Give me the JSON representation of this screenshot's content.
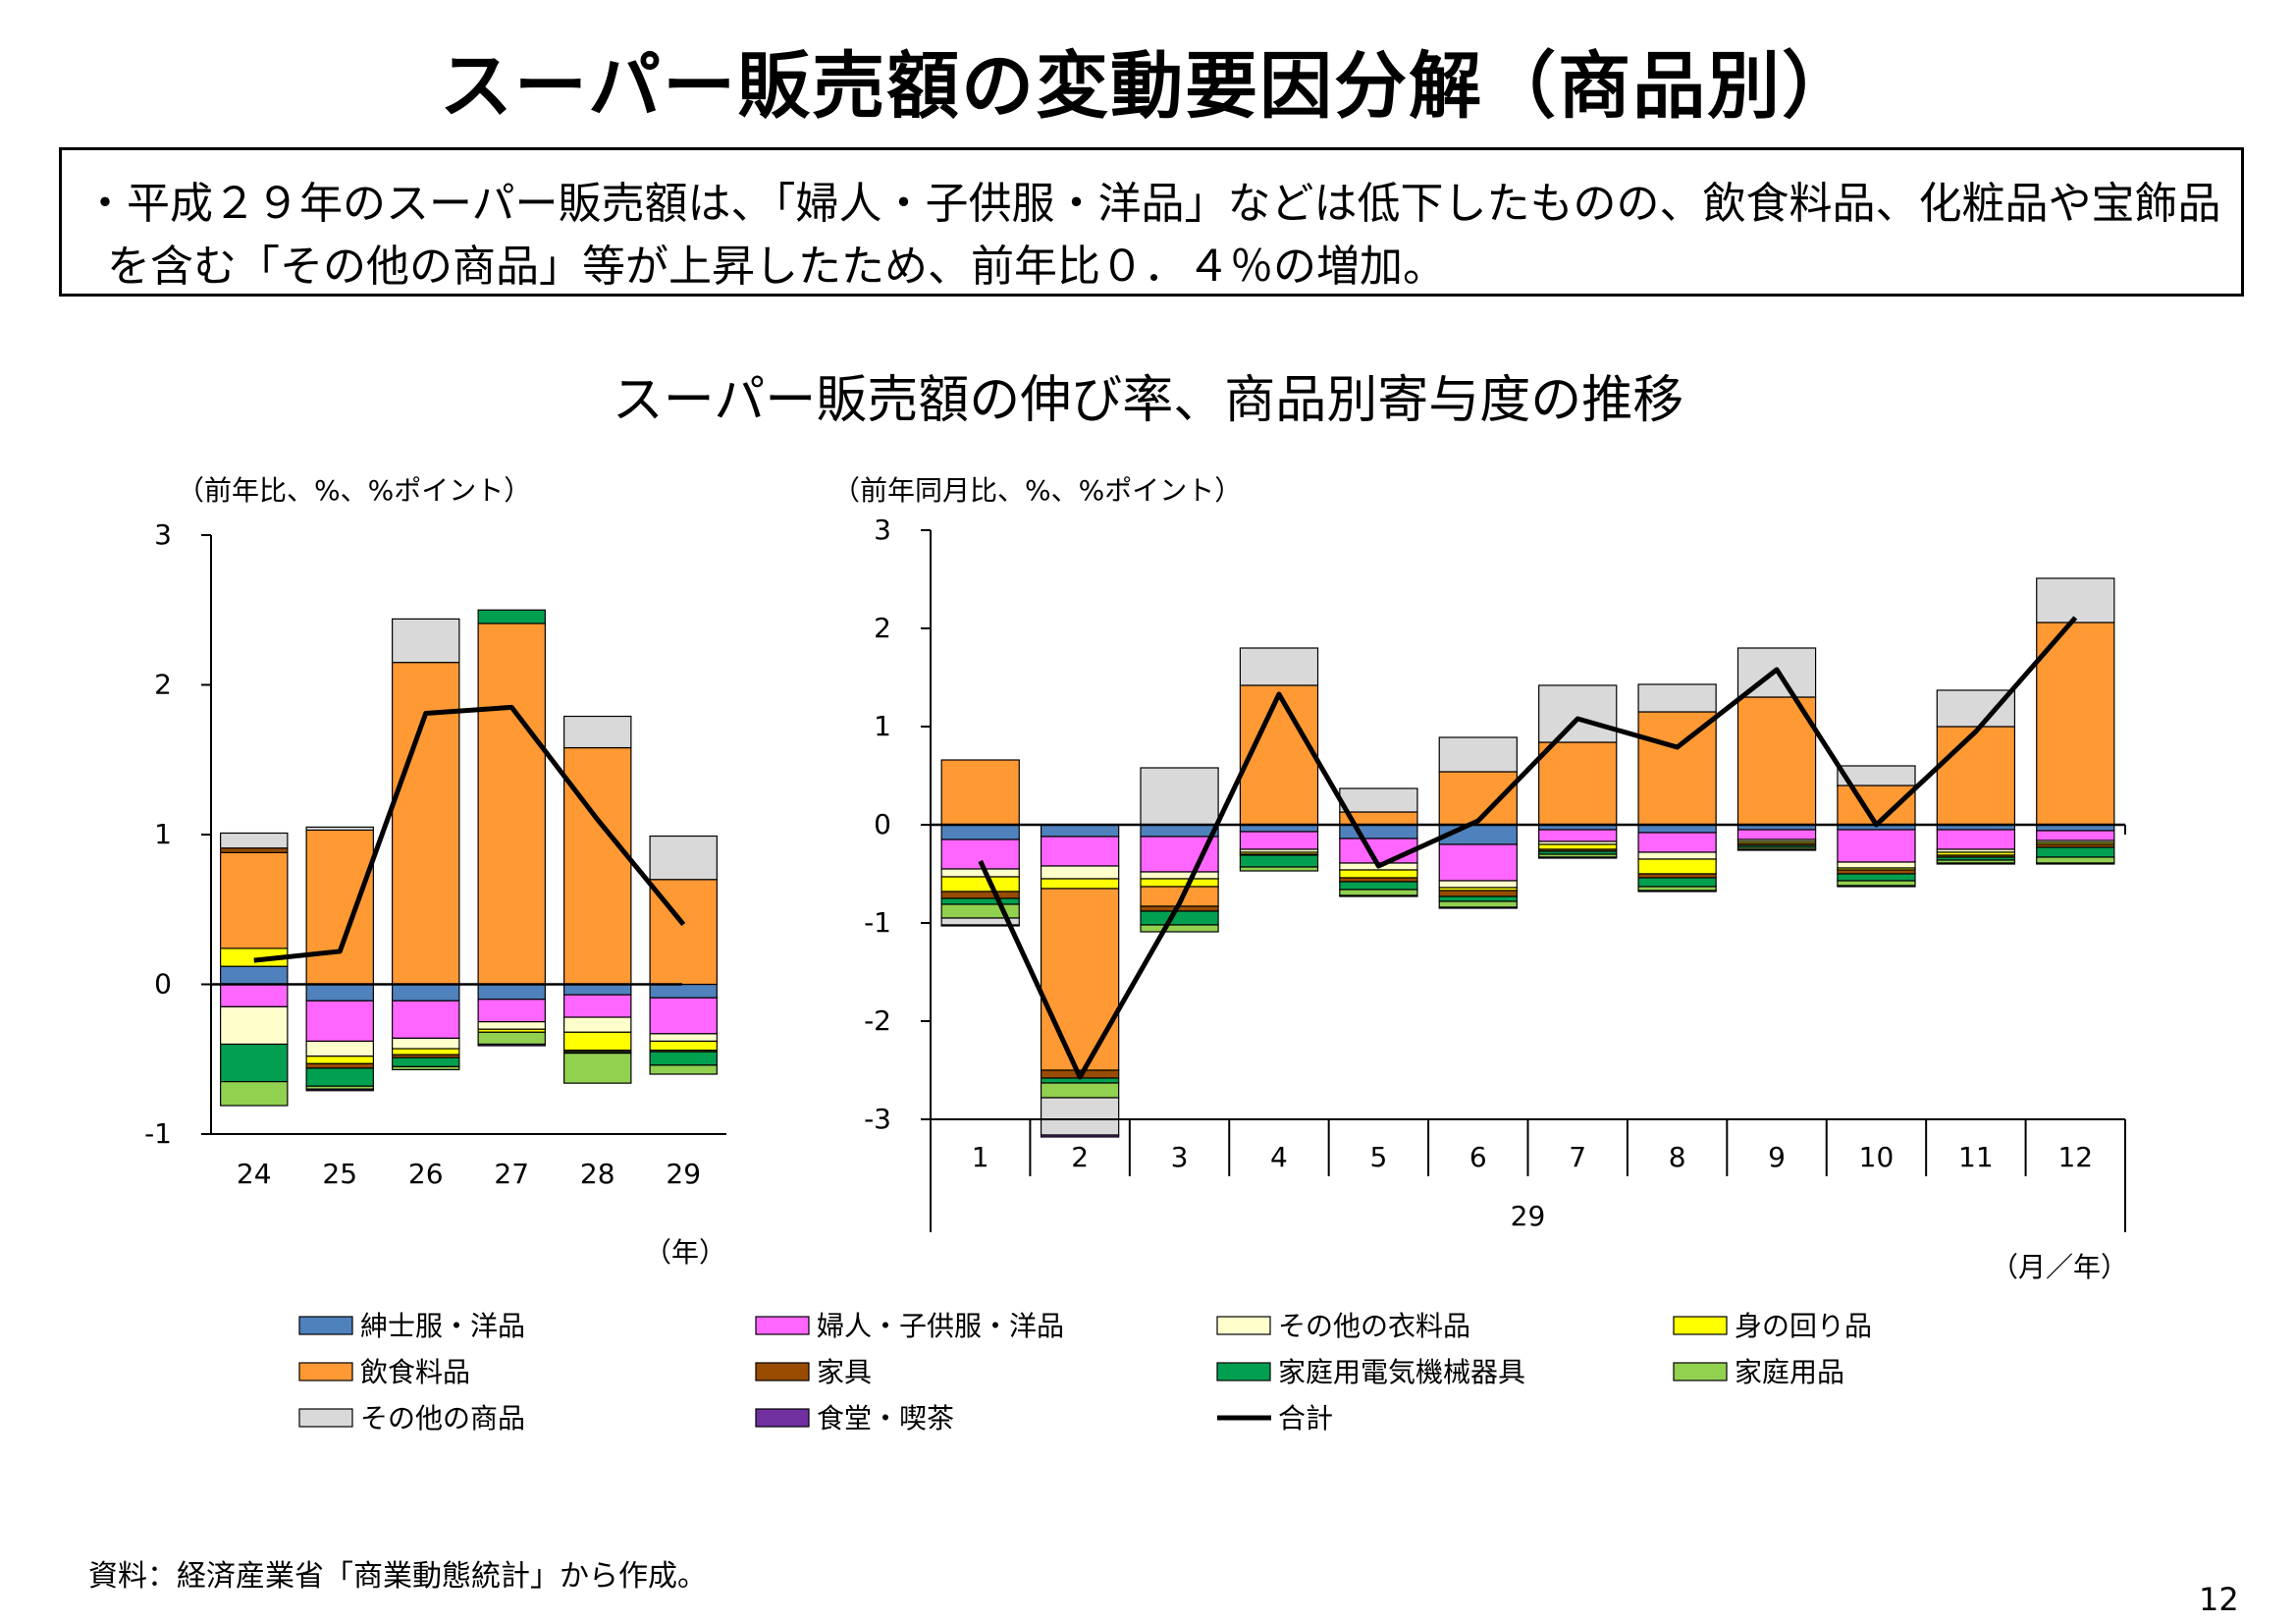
{
  "title": "スーパー販売額の変動要因分解（商品別）",
  "summary": {
    "line1": "・平成２９年のスーパー販売額は、「婦人・子供服・洋品」などは低下したものの、飲食料品、化粧品や宝飾品",
    "line2": "を含む「その他の商品」等が上昇したため、前年比０．４％の増加。"
  },
  "chart_title": "スーパー販売額の伸び率、商品別寄与度の推移",
  "note": "資料：経済産業省「商業動態統計」から作成。",
  "page_number": "12",
  "colors": {
    "紳士服・洋品": "#4f81bd",
    "婦人・子供服・洋品": "#ff66ff",
    "その他の衣料品": "#ffffcc",
    "身の回り品": "#ffff00",
    "飲食料品": "#ff9933",
    "家具": "#994c00",
    "家庭用電気機械器具": "#00a050",
    "家庭用品": "#92d050",
    "その他の商品": "#d9d9d9",
    "食堂・喫茶": "#7030a0",
    "合計": "#000000"
  },
  "legend": {
    "items": [
      "紳士服・洋品",
      "婦人・子供服・洋品",
      "その他の衣料品",
      "身の回り品",
      "飲食料品",
      "家具",
      "家庭用電気機械器具",
      "家庭用品",
      "その他の商品",
      "食堂・喫茶",
      "合計"
    ]
  },
  "chart_data": [
    {
      "type": "bar",
      "stacked": true,
      "unit_label": "（前年比、%、%ポイント）",
      "x_unit": "（年）",
      "categories": [
        "24",
        "25",
        "26",
        "27",
        "28",
        "29"
      ],
      "ylim": [
        -1,
        3
      ],
      "yticks": [
        "3",
        "2",
        "1",
        "0",
        "-1"
      ],
      "series": [
        {
          "name": "紳士服・洋品",
          "values": [
            0.12,
            -0.11,
            -0.11,
            -0.1,
            -0.07,
            -0.09
          ]
        },
        {
          "name": "婦人・子供服・洋品",
          "values": [
            -0.15,
            -0.27,
            -0.25,
            -0.15,
            -0.15,
            -0.24
          ]
        },
        {
          "name": "その他の衣料品",
          "values": [
            -0.25,
            -0.1,
            -0.07,
            -0.05,
            -0.1,
            -0.05
          ]
        },
        {
          "name": "身の回り品",
          "values": [
            0.12,
            -0.05,
            -0.04,
            -0.02,
            -0.12,
            -0.06
          ]
        },
        {
          "name": "飲食料品",
          "values": [
            0.64,
            1.03,
            2.15,
            2.41,
            1.58,
            0.7
          ]
        },
        {
          "name": "家具",
          "values": [
            0.03,
            -0.03,
            -0.02,
            0,
            -0.01,
            -0.01
          ]
        },
        {
          "name": "家庭用電気機械器具",
          "values": [
            -0.25,
            -0.12,
            -0.06,
            0.09,
            -0.01,
            -0.09
          ]
        },
        {
          "name": "家庭用品",
          "values": [
            -0.16,
            -0.02,
            -0.02,
            -0.08,
            -0.2,
            -0.06
          ]
        },
        {
          "name": "その他の商品",
          "values": [
            0.1,
            0.02,
            0.29,
            0,
            0.21,
            0.29
          ]
        },
        {
          "name": "食堂・喫茶",
          "values": [
            0,
            -0.01,
            0,
            -0.01,
            0,
            0
          ]
        }
      ],
      "total": {
        "name": "合計",
        "values": [
          0.16,
          0.22,
          1.81,
          1.85,
          1.1,
          0.4
        ]
      }
    },
    {
      "type": "bar",
      "stacked": true,
      "unit_label": "（前年同月比、%、%ポイント）",
      "x_unit": "（月／年）",
      "year_label": "29",
      "categories": [
        "1",
        "2",
        "3",
        "4",
        "5",
        "6",
        "7",
        "8",
        "9",
        "10",
        "11",
        "12"
      ],
      "ylim": [
        -3,
        3
      ],
      "yticks": [
        "3",
        "2",
        "1",
        "0",
        "-1",
        "-2",
        "-3"
      ],
      "series": [
        {
          "name": "紳士服・洋品",
          "values": [
            -0.15,
            -0.12,
            -0.12,
            -0.07,
            -0.14,
            -0.2,
            -0.05,
            -0.08,
            -0.05,
            -0.05,
            -0.05,
            -0.06
          ]
        },
        {
          "name": "婦人・子供服・洋品",
          "values": [
            -0.3,
            -0.3,
            -0.36,
            -0.18,
            -0.25,
            -0.37,
            -0.12,
            -0.2,
            -0.1,
            -0.33,
            -0.2,
            -0.1
          ]
        },
        {
          "name": "その他の衣料品",
          "values": [
            -0.08,
            -0.13,
            -0.07,
            -0.03,
            -0.07,
            -0.07,
            -0.03,
            -0.07,
            -0.02,
            -0.06,
            -0.03,
            -0.02
          ]
        },
        {
          "name": "身の回り品",
          "values": [
            -0.15,
            -0.1,
            -0.08,
            -0.02,
            -0.08,
            -0.03,
            -0.05,
            -0.15,
            -0.02,
            -0.02,
            -0.03,
            -0.02
          ]
        },
        {
          "name": "飲食料品",
          "values": [
            0.66,
            -1.85,
            -0.2,
            1.42,
            0.13,
            0.54,
            0.84,
            1.15,
            1.3,
            0.4,
            1.0,
            2.06
          ]
        },
        {
          "name": "家具",
          "values": [
            -0.07,
            -0.08,
            -0.05,
            -0.01,
            -0.04,
            -0.06,
            -0.02,
            -0.04,
            -0.02,
            -0.04,
            -0.02,
            -0.03
          ]
        },
        {
          "name": "家庭用電気機械器具",
          "values": [
            -0.06,
            -0.05,
            -0.14,
            -0.12,
            -0.08,
            -0.05,
            -0.03,
            -0.09,
            -0.02,
            -0.07,
            -0.03,
            -0.1
          ]
        },
        {
          "name": "家庭用品",
          "values": [
            -0.14,
            -0.15,
            -0.07,
            -0.04,
            -0.06,
            -0.06,
            -0.03,
            -0.04,
            -0.02,
            -0.05,
            -0.03,
            -0.06
          ]
        },
        {
          "name": "その他の商品",
          "values": [
            -0.07,
            -0.38,
            0.58,
            0.38,
            0.24,
            0.35,
            0.58,
            0.28,
            0.5,
            0.2,
            0.37,
            0.45
          ]
        },
        {
          "name": "食堂・喫茶",
          "values": [
            -0.01,
            -0.02,
            0,
            0,
            -0.01,
            -0.01,
            -0.01,
            -0.01,
            -0.01,
            -0.01,
            -0.01,
            -0.01
          ]
        }
      ],
      "total": {
        "name": "合計",
        "values": [
          -0.37,
          -2.57,
          -0.8,
          1.33,
          -0.42,
          0.04,
          1.08,
          0.79,
          1.58,
          0.0,
          0.95,
          2.11
        ]
      }
    }
  ]
}
